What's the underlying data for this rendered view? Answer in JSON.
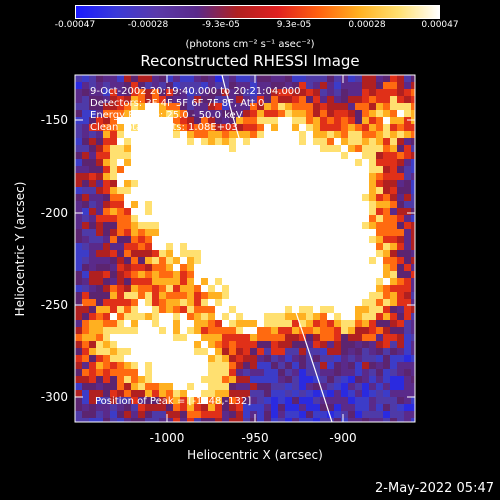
{
  "colorbar": {
    "ticks": [
      "-0.00047",
      "-0.00028",
      "-9.3e-05",
      "9.3e-05",
      "0.00028",
      "0.00047"
    ],
    "units": "(photons cm⁻² s⁻¹ asec⁻²)"
  },
  "title": "Reconstructed RHESSI Image",
  "annotations": {
    "time": "9-Oct-2002 20:19:40.000 to 20:21:04.000",
    "detectors": "Detectors: 3F 4F 5F 6F 7F 8F, Att 0",
    "energy": "Energy Range: 25.0 - 50.0 keV",
    "clean": "Clean     Total counts: 1.08E+03",
    "peak": "Position of Peak = [-1048,-132]"
  },
  "axes": {
    "xlabel": "Heliocentric X (arcsec)",
    "ylabel": "Heliocentric Y (arcsec)",
    "xticks": [
      "-1000",
      "-950",
      "-900"
    ],
    "yticks": [
      "-150",
      "-200",
      "-250",
      "-300"
    ]
  },
  "timestamp": "2-May-2022 05:47",
  "colors": {
    "colormap": [
      "#1a1aff",
      "#3a3ad8",
      "#5a3aaa",
      "#5a2a8a",
      "#b02020",
      "#e02020",
      "#ff6010",
      "#ffb020",
      "#ffe070",
      "#ffffff"
    ],
    "limb": "#ffffff"
  }
}
